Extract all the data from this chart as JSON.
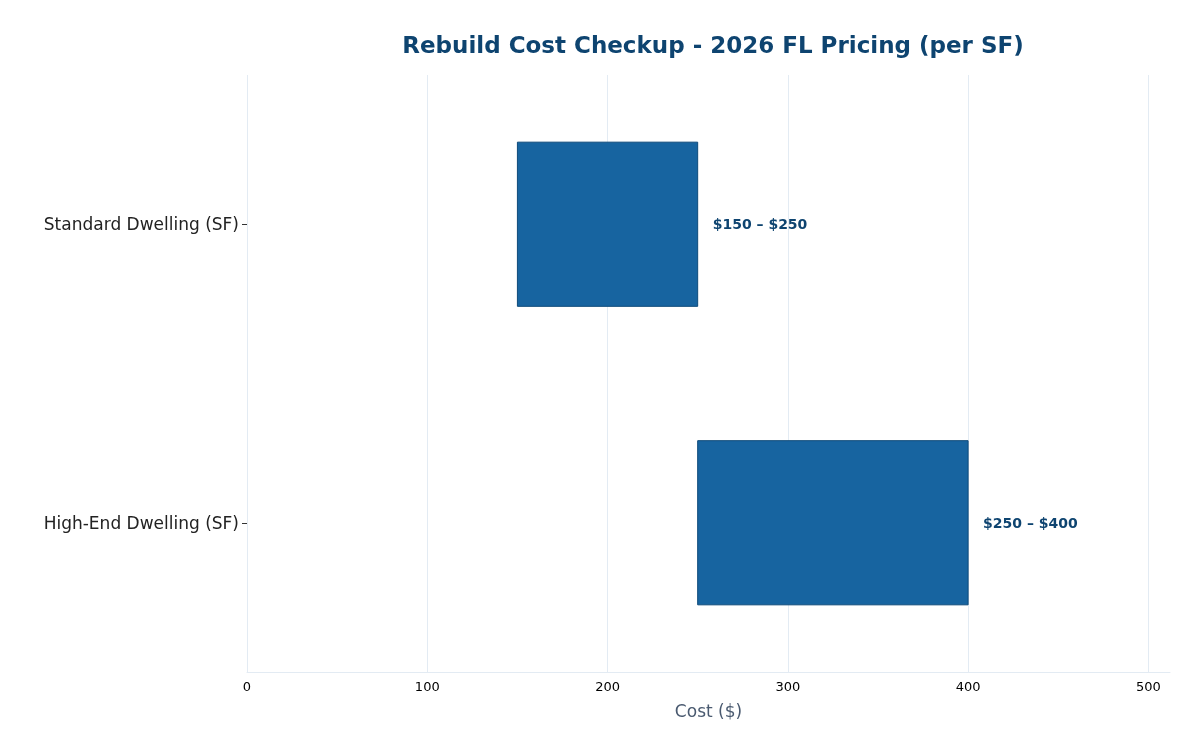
{
  "chart_data": {
    "type": "bar",
    "orientation": "horizontal",
    "title": "Rebuild Cost Checkup - 2026 FL Pricing (per SF)",
    "xlabel": "Cost ($)",
    "categories": [
      "Standard Dwelling (SF)",
      "High-End Dwelling (SF)"
    ],
    "base": [
      150,
      250
    ],
    "values": [
      100,
      150
    ],
    "annotations": [
      {
        "text": "$150 – $250",
        "x": 250,
        "y": "Standard Dwelling (SF)"
      },
      {
        "text": "$250 – $400",
        "x": 400,
        "y": "High-End Dwelling (SF)"
      }
    ],
    "color": "#1764a0",
    "xlim": [
      0,
      512
    ],
    "xticks": [
      0,
      100,
      200,
      300,
      400,
      500
    ],
    "grid": "x"
  }
}
